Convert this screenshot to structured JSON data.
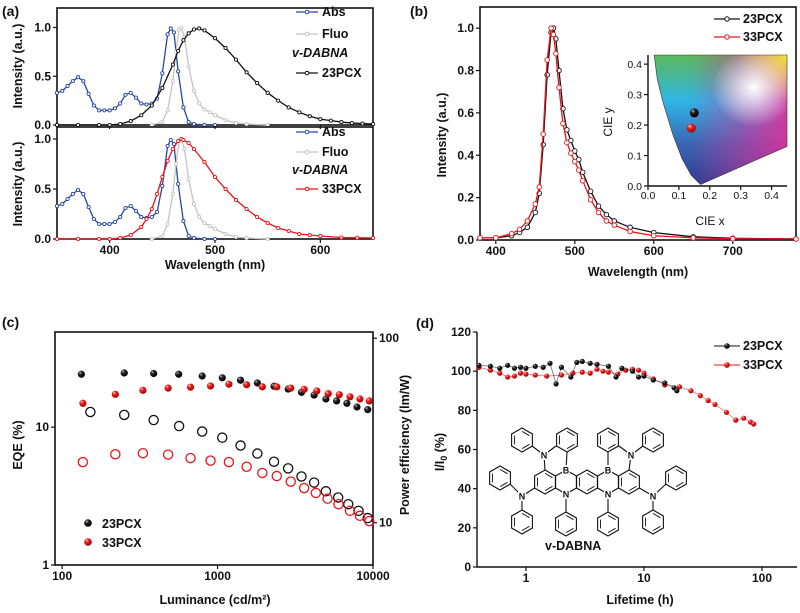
{
  "panel_labels": [
    "(a)",
    "(b)",
    "(c)",
    "(d)"
  ],
  "molecule": {
    "name": "v-DABNA",
    "atom_labels": {
      "nitrogen": "N",
      "boron": "B"
    }
  },
  "colors": {
    "abs": "#2b45a6",
    "fluo": "#c4c4c4",
    "pcx23": "#111111",
    "pcx33": "#e8141a"
  },
  "chart_data": [
    {
      "type": "line",
      "panel": "a-top",
      "xlabel": "Wavelength (nm)",
      "ylabel": "Intensity (a.u.)",
      "xlim": [
        350,
        650
      ],
      "ylim": [
        0,
        1.2
      ],
      "xticks": [
        400,
        500,
        600
      ],
      "xticklabels": [],
      "yticks": [
        0,
        0.5,
        1.0
      ],
      "yticklabels": [
        "0.0",
        "0.5",
        "1.0"
      ],
      "legend_position": "top-right",
      "legend_extra": "v-DABNA",
      "series": [
        {
          "name": "Abs",
          "color": "#2b45a6",
          "x": [
            350,
            355,
            360,
            365,
            370,
            375,
            380,
            385,
            390,
            395,
            400,
            405,
            410,
            415,
            420,
            425,
            430,
            435,
            440,
            445,
            450,
            455,
            458,
            461,
            465,
            470,
            475,
            480,
            490,
            500
          ],
          "y": [
            0.33,
            0.35,
            0.4,
            0.45,
            0.49,
            0.45,
            0.32,
            0.2,
            0.15,
            0.15,
            0.15,
            0.17,
            0.22,
            0.31,
            0.33,
            0.28,
            0.22,
            0.21,
            0.22,
            0.27,
            0.53,
            0.93,
            0.99,
            0.95,
            0.55,
            0.18,
            0.03,
            0.01,
            0.0,
            0.0
          ]
        },
        {
          "name": "Fluo",
          "color": "#c4c4c4",
          "x": [
            440,
            450,
            455,
            460,
            463,
            466,
            468,
            471,
            475,
            480,
            485,
            490,
            495,
            500,
            510,
            520,
            530,
            550
          ],
          "y": [
            0.0,
            0.03,
            0.15,
            0.45,
            0.75,
            0.98,
            1.0,
            0.9,
            0.6,
            0.35,
            0.22,
            0.16,
            0.13,
            0.1,
            0.05,
            0.02,
            0.01,
            0.0
          ]
        },
        {
          "name": "23PCX",
          "color": "#111111",
          "x": [
            350,
            370,
            390,
            400,
            410,
            420,
            430,
            440,
            450,
            460,
            465,
            470,
            475,
            480,
            485,
            490,
            500,
            510,
            520,
            530,
            540,
            550,
            560,
            570,
            580,
            590,
            600,
            610,
            620,
            630,
            640,
            650
          ],
          "y": [
            0,
            0,
            0,
            0,
            0.01,
            0.04,
            0.1,
            0.2,
            0.38,
            0.62,
            0.76,
            0.87,
            0.94,
            0.98,
            0.99,
            0.97,
            0.89,
            0.79,
            0.67,
            0.54,
            0.43,
            0.33,
            0.25,
            0.18,
            0.13,
            0.09,
            0.06,
            0.045,
            0.03,
            0.02,
            0.015,
            0.01
          ]
        }
      ]
    },
    {
      "type": "line",
      "panel": "a-bottom",
      "xlabel": "Wavelength (nm)",
      "ylabel": "Intensity (a.u.)",
      "xlim": [
        350,
        650
      ],
      "ylim": [
        0,
        1.12
      ],
      "xticks": [
        400,
        500,
        600
      ],
      "xticklabels": [
        "400",
        "500",
        "600"
      ],
      "yticks": [
        0,
        0.5,
        1.0
      ],
      "yticklabels": [
        "0.0",
        "0.5",
        "1.0"
      ],
      "legend_position": "top-right",
      "legend_extra": "v-DABNA",
      "series": [
        {
          "name": "Abs",
          "color": "#2b45a6",
          "x": [
            350,
            355,
            360,
            365,
            370,
            375,
            380,
            385,
            390,
            395,
            400,
            405,
            410,
            415,
            420,
            425,
            430,
            435,
            440,
            445,
            450,
            455,
            458,
            461,
            465,
            470,
            475,
            480,
            490,
            500
          ],
          "y": [
            0.33,
            0.35,
            0.4,
            0.45,
            0.49,
            0.45,
            0.32,
            0.2,
            0.15,
            0.15,
            0.15,
            0.17,
            0.22,
            0.31,
            0.33,
            0.28,
            0.22,
            0.21,
            0.22,
            0.27,
            0.53,
            0.93,
            0.99,
            0.95,
            0.55,
            0.18,
            0.03,
            0.01,
            0.0,
            0.0
          ]
        },
        {
          "name": "Fluo",
          "color": "#c4c4c4",
          "x": [
            440,
            450,
            455,
            460,
            463,
            466,
            468,
            471,
            475,
            480,
            485,
            490,
            495,
            500,
            510,
            520,
            530,
            550
          ],
          "y": [
            0.0,
            0.03,
            0.15,
            0.45,
            0.75,
            0.98,
            1.0,
            0.9,
            0.6,
            0.35,
            0.22,
            0.16,
            0.13,
            0.1,
            0.05,
            0.02,
            0.01,
            0.0
          ]
        },
        {
          "name": "33PCX",
          "color": "#e8141a",
          "x": [
            350,
            370,
            390,
            400,
            410,
            420,
            430,
            435,
            440,
            445,
            450,
            455,
            460,
            465,
            468,
            470,
            475,
            480,
            490,
            500,
            510,
            520,
            530,
            540,
            550,
            560,
            570,
            580,
            590,
            600,
            620,
            635,
            650
          ],
          "y": [
            0,
            0,
            0,
            0,
            0.01,
            0.04,
            0.12,
            0.2,
            0.3,
            0.45,
            0.62,
            0.78,
            0.9,
            0.98,
            1.0,
            0.99,
            0.96,
            0.9,
            0.77,
            0.62,
            0.5,
            0.39,
            0.3,
            0.22,
            0.16,
            0.11,
            0.08,
            0.05,
            0.04,
            0.03,
            0.015,
            0.012,
            0.01
          ]
        }
      ]
    },
    {
      "type": "line",
      "panel": "b",
      "xlabel": "Wavelength (nm)",
      "ylabel": "Intensity (a.u.)",
      "xlim": [
        380,
        780
      ],
      "ylim": [
        0,
        1.1
      ],
      "xticks": [
        400,
        500,
        600,
        700
      ],
      "xticklabels": [
        "400",
        "500",
        "600",
        "700"
      ],
      "yticks": [
        0,
        0.2,
        0.4,
        0.6,
        0.8,
        1.0
      ],
      "yticklabels": [
        "0.0",
        "0.2",
        "0.4",
        "0.6",
        "0.8",
        "1.0"
      ],
      "legend_position": "top-right",
      "series": [
        {
          "name": "23PCX",
          "color": "#111111",
          "x": [
            380,
            400,
            420,
            430,
            440,
            450,
            455,
            460,
            465,
            470,
            473,
            476,
            480,
            485,
            490,
            495,
            500,
            505,
            510,
            520,
            530,
            540,
            550,
            570,
            600,
            650,
            700,
            780
          ],
          "y": [
            0.01,
            0.01,
            0.02,
            0.035,
            0.06,
            0.13,
            0.22,
            0.45,
            0.78,
            0.98,
            1.0,
            0.95,
            0.8,
            0.62,
            0.52,
            0.47,
            0.42,
            0.38,
            0.32,
            0.23,
            0.16,
            0.12,
            0.09,
            0.06,
            0.035,
            0.015,
            0.008,
            0.005
          ]
        },
        {
          "name": "33PCX",
          "color": "#e8141a",
          "x": [
            380,
            400,
            420,
            430,
            440,
            450,
            455,
            460,
            465,
            470,
            473,
            476,
            480,
            485,
            490,
            495,
            500,
            505,
            510,
            520,
            530,
            540,
            550,
            570,
            600,
            650,
            700,
            780
          ],
          "y": [
            0.01,
            0.01,
            0.03,
            0.05,
            0.09,
            0.17,
            0.25,
            0.5,
            0.85,
            1.0,
            0.97,
            0.88,
            0.72,
            0.55,
            0.46,
            0.41,
            0.37,
            0.33,
            0.28,
            0.19,
            0.13,
            0.09,
            0.07,
            0.04,
            0.02,
            0.01,
            0.006,
            0.005
          ]
        }
      ]
    },
    {
      "type": "scatter",
      "panel": "b-inset",
      "xlabel": "CIE x",
      "ylabel": "CIE y",
      "xlim": [
        0,
        0.45
      ],
      "ylim": [
        0,
        0.43
      ],
      "xticks": [
        0,
        0.1,
        0.2,
        0.3,
        0.4
      ],
      "xticklabels": [
        "0.0",
        "0.1",
        "0.2",
        "0.3",
        "0.4"
      ],
      "yticks": [
        0,
        0.1,
        0.2,
        0.3,
        0.4
      ],
      "yticklabels": [
        "0.0",
        "0.1",
        "0.2",
        "0.3",
        "0.4"
      ],
      "series": [
        {
          "name": "23PCX",
          "color": "#111111",
          "x": [
            0.15
          ],
          "y": [
            0.24
          ]
        },
        {
          "name": "33PCX",
          "color": "#e8141a",
          "x": [
            0.14
          ],
          "y": [
            0.19
          ]
        }
      ]
    },
    {
      "type": "scatter",
      "panel": "c",
      "xlabel": "Luminance (cd/m²)",
      "ylabel": "EQE (%)",
      "y2label": "Power efficiency (lm/W)",
      "xscale": "log",
      "yscale": "log",
      "xlim": [
        90,
        10000
      ],
      "ylim": [
        1,
        49
      ],
      "y2lim": [
        5.9,
        108
      ],
      "xticks": [
        100,
        1000,
        10000
      ],
      "xticklabels": [
        "100",
        "1000",
        "10000"
      ],
      "yticks": [
        1,
        10
      ],
      "yticklabels": [
        "1",
        "10"
      ],
      "y2ticks": [
        10,
        100
      ],
      "y2ticklabels": [
        "10",
        "100"
      ],
      "legend_position": "bottom-left",
      "series": [
        {
          "name": "23PCX",
          "metric": "EQE",
          "axis": "left",
          "marker": "filled",
          "color": "#111111",
          "x": [
            133,
            251,
            388,
            562,
            796,
            1072,
            1406,
            1803,
            2307,
            2844,
            3467,
            4180,
            4977,
            5834,
            6792,
            7888,
            9246
          ],
          "y": [
            24.2,
            24.7,
            24.5,
            24.2,
            23.5,
            22.8,
            21.9,
            20.9,
            19.8,
            18.9,
            17.9,
            17.1,
            16.0,
            15.5,
            14.9,
            14.0,
            13.4
          ]
        },
        {
          "name": "33PCX",
          "metric": "EQE",
          "axis": "left",
          "marker": "filled",
          "color": "#e8141a",
          "x": [
            136,
            220,
            331,
            481,
            670,
            901,
            1183,
            1538,
            1941,
            2404,
            2958,
            3606,
            4351,
            5152,
            6067,
            7112,
            8241,
            9465
          ],
          "y": [
            14.9,
            17.3,
            18.5,
            19.2,
            19.5,
            19.9,
            20.5,
            20.3,
            19.6,
            19.6,
            19.2,
            18.8,
            18.3,
            17.5,
            17.2,
            16.6,
            16.0,
            15.5
          ]
        },
        {
          "name": "23PCX",
          "metric": "Power efficiency",
          "axis": "right",
          "marker": "open",
          "color": "#111111",
          "x": [
            152,
            251,
            388,
            566,
            796,
            1072,
            1406,
            1803,
            2307,
            2844,
            3467,
            4180,
            4977,
            5970,
            6933,
            8070,
            9246
          ],
          "y": [
            39.8,
            38.4,
            36.0,
            33.4,
            31.2,
            28.9,
            26.2,
            23.7,
            21.4,
            19.7,
            17.8,
            16.5,
            14.8,
            13.7,
            12.6,
            11.6,
            10.6
          ]
        },
        {
          "name": "33PCX",
          "metric": "Power efficiency",
          "axis": "right",
          "marker": "open",
          "color": "#e8141a",
          "x": [
            136,
            220,
            331,
            481,
            670,
            901,
            1183,
            1538,
            1941,
            2404,
            2958,
            3606,
            4290,
            5100,
            6000,
            7112,
            8241,
            9465
          ],
          "y": [
            21.3,
            23.5,
            23.8,
            23.4,
            22.4,
            21.7,
            21.3,
            20.1,
            18.6,
            17.9,
            16.7,
            15.4,
            14.5,
            13.5,
            12.6,
            11.6,
            10.9,
            10.2
          ]
        }
      ]
    },
    {
      "type": "scatter",
      "panel": "d",
      "xlabel": "Lifetime (h)",
      "ylabel": "I/I0 (%)",
      "ylabel_main": "I/I",
      "ylabel_sub": "0",
      "ylabel_tail": " (%)",
      "xscale": "log",
      "xlim": [
        0.385,
        198
      ],
      "ylim": [
        0,
        120
      ],
      "xticks": [
        1,
        10,
        100
      ],
      "xticklabels": [
        "1",
        "10",
        "100"
      ],
      "yticks": [
        0,
        20,
        40,
        60,
        80,
        100,
        120
      ],
      "yticklabels": [
        "0",
        "20",
        "40",
        "60",
        "80",
        "100",
        "120"
      ],
      "legend_position": "top-right",
      "series": [
        {
          "name": "23PCX",
          "color": "#111111",
          "x": [
            0.4,
            0.5,
            0.6,
            0.7,
            0.8,
            0.9,
            1.0,
            1.2,
            1.4,
            1.6,
            1.8,
            2.0,
            2.4,
            2.7,
            3.0,
            3.5,
            4.0,
            5.0,
            5.8,
            6.5,
            8,
            9,
            10,
            12,
            15,
            18,
            19
          ],
          "y": [
            103,
            102.5,
            101.5,
            103,
            101.5,
            102,
            101.5,
            102.5,
            102,
            104,
            93.5,
            102,
            97,
            104.5,
            105,
            104,
            103.5,
            102.5,
            97,
            101.5,
            100,
            97,
            97.5,
            95.5,
            94,
            91.5,
            90
          ]
        },
        {
          "name": "33PCX",
          "color": "#e8141a",
          "x": [
            0.4,
            0.5,
            0.6,
            0.7,
            0.8,
            0.9,
            1.0,
            1.2,
            1.5,
            2,
            2.5,
            3,
            3.5,
            4,
            4.5,
            5,
            6,
            7,
            8,
            9,
            10,
            12,
            15,
            20,
            25,
            30,
            35,
            40,
            50,
            60,
            70,
            80,
            85
          ],
          "y": [
            102,
            100.5,
            99,
            97,
            97.5,
            99,
            98.5,
            98,
            97.5,
            98,
            99,
            99.5,
            99,
            101,
            100,
            99.5,
            98.5,
            100.5,
            101,
            100.5,
            99,
            96,
            93,
            92,
            90,
            87.5,
            85,
            83,
            79,
            75,
            76,
            74,
            73
          ]
        }
      ]
    }
  ]
}
